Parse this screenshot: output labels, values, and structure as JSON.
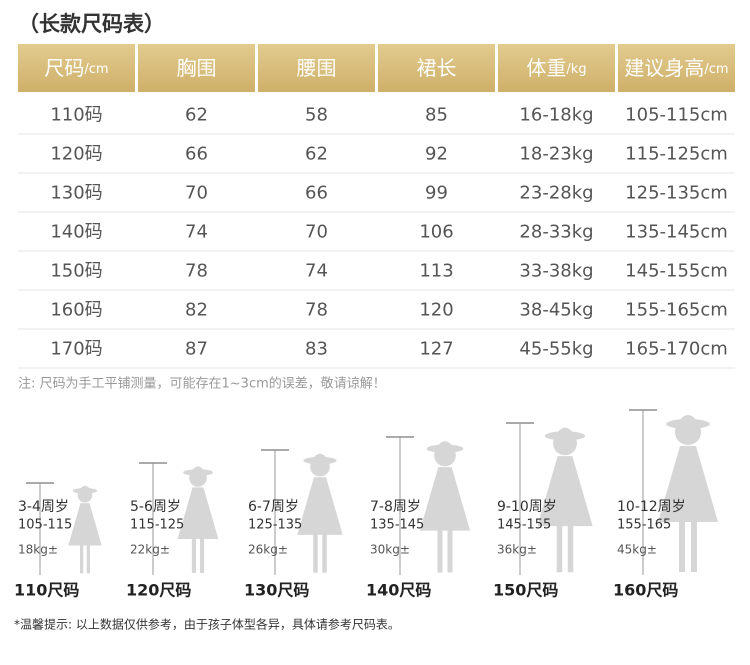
{
  "title": "（长款尺码表）",
  "table": {
    "headers": [
      {
        "main": "尺码",
        "unit": "/cm"
      },
      {
        "main": "胸围",
        "unit": ""
      },
      {
        "main": "腰围",
        "unit": ""
      },
      {
        "main": "裙长",
        "unit": ""
      },
      {
        "main": "体重",
        "unit": "/kg"
      },
      {
        "main": "建议身高",
        "unit": "/cm"
      }
    ],
    "rows": [
      [
        "110码",
        "62",
        "58",
        "85",
        "16-18kg",
        "105-115cm"
      ],
      [
        "120码",
        "66",
        "62",
        "92",
        "18-23kg",
        "115-125cm"
      ],
      [
        "130码",
        "70",
        "66",
        "99",
        "23-28kg",
        "125-135cm"
      ],
      [
        "140码",
        "74",
        "70",
        "106",
        "28-33kg",
        "135-145cm"
      ],
      [
        "150码",
        "78",
        "74",
        "113",
        "33-38kg",
        "145-155cm"
      ],
      [
        "160码",
        "82",
        "78",
        "120",
        "38-45kg",
        "155-165cm"
      ],
      [
        "170码",
        "87",
        "83",
        "127",
        "45-55kg",
        "165-170cm"
      ]
    ]
  },
  "note": "注: 尺码为手工平铺测量，可能存在1~3cm的误差，敬请谅解！",
  "figures": [
    {
      "age": "3-4周岁",
      "range": "105-115",
      "weight": "18kg±",
      "size": "110尺码"
    },
    {
      "age": "5-6周岁",
      "range": "115-125",
      "weight": "22kg±",
      "size": "120尺码"
    },
    {
      "age": "6-7周岁",
      "range": "125-135",
      "weight": "26kg±",
      "size": "130尺码"
    },
    {
      "age": "7-8周岁",
      "range": "135-145",
      "weight": "30kg±",
      "size": "140尺码"
    },
    {
      "age": "9-10周岁",
      "range": "145-155",
      "weight": "36kg±",
      "size": "150尺码"
    },
    {
      "age": "10-12周岁",
      "range": "155-165",
      "weight": "45kg±",
      "size": "160尺码"
    }
  ],
  "footer": "*温馨提示: 以上数据仅供参考，由于孩子体型各异，具体请参考尺码表。"
}
